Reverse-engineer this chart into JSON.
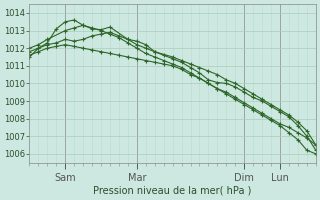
{
  "title": "",
  "xlabel": "Pression niveau de la mer( hPa )",
  "bg_color": "#cce8e0",
  "grid_color_major": "#aaccbb",
  "grid_color_minor": "#bbddcc",
  "line_color": "#2d6628",
  "marker_color": "#2d6628",
  "ylim": [
    1005.5,
    1014.5
  ],
  "yticks": [
    1006,
    1007,
    1008,
    1009,
    1010,
    1011,
    1012,
    1013,
    1014
  ],
  "xlim": [
    0,
    96
  ],
  "xtick_positions": [
    12,
    36,
    72,
    84
  ],
  "xtick_labels": [
    "Sam",
    "Mar",
    "Dim",
    "Lun"
  ],
  "minor_xtick_step": 3,
  "series": [
    {
      "x": [
        0,
        3,
        6,
        9,
        12,
        15,
        18,
        21,
        24,
        27,
        30,
        33,
        36,
        39,
        42,
        45,
        48,
        51,
        54,
        57,
        60,
        63,
        66,
        69,
        72,
        75,
        78,
        81,
        84,
        87,
        90,
        93,
        96
      ],
      "y": [
        1011.6,
        1011.8,
        1012.0,
        1012.1,
        1012.2,
        1012.1,
        1012.0,
        1011.9,
        1011.8,
        1011.7,
        1011.6,
        1011.5,
        1011.4,
        1011.3,
        1011.2,
        1011.1,
        1011.0,
        1010.8,
        1010.5,
        1010.3,
        1010.0,
        1009.7,
        1009.5,
        1009.2,
        1008.9,
        1008.6,
        1008.3,
        1008.0,
        1007.7,
        1007.5,
        1007.2,
        1006.9,
        1006.5
      ]
    },
    {
      "x": [
        0,
        3,
        6,
        12,
        15,
        18,
        21,
        24,
        27,
        30,
        33,
        36,
        39,
        42,
        45,
        48,
        51,
        54,
        57,
        60,
        63,
        66,
        69,
        72,
        75,
        78,
        81,
        84,
        87,
        90,
        93,
        96
      ],
      "y": [
        1012.0,
        1012.2,
        1012.5,
        1013.0,
        1013.15,
        1013.3,
        1013.15,
        1013.0,
        1012.8,
        1012.6,
        1012.3,
        1012.0,
        1011.7,
        1011.5,
        1011.3,
        1011.1,
        1010.9,
        1010.6,
        1010.3,
        1010.0,
        1009.7,
        1009.4,
        1009.1,
        1008.8,
        1008.5,
        1008.2,
        1007.9,
        1007.6,
        1007.2,
        1006.8,
        1006.2,
        1006.0
      ]
    },
    {
      "x": [
        0,
        3,
        6,
        9,
        12,
        15,
        18,
        21,
        24,
        27,
        33,
        36,
        39,
        42,
        45,
        48,
        51,
        54,
        57,
        60,
        63,
        66,
        69,
        72,
        75,
        78,
        81,
        84,
        87,
        90,
        93,
        96
      ],
      "y": [
        1011.5,
        1012.0,
        1012.3,
        1013.1,
        1013.5,
        1013.6,
        1013.3,
        1013.1,
        1013.05,
        1013.2,
        1012.5,
        1012.4,
        1012.2,
        1011.8,
        1011.6,
        1011.4,
        1011.2,
        1010.9,
        1010.6,
        1010.2,
        1010.05,
        1010.0,
        1009.8,
        1009.5,
        1009.2,
        1009.0,
        1008.7,
        1008.4,
        1008.1,
        1007.6,
        1007.0,
        1006.2
      ]
    },
    {
      "x": [
        0,
        3,
        6,
        9,
        12,
        15,
        18,
        21,
        24,
        27,
        30,
        33,
        36,
        39,
        42,
        48,
        51,
        54,
        57,
        60,
        63,
        66,
        69,
        72,
        75,
        78,
        81,
        84,
        87,
        90,
        93,
        96
      ],
      "y": [
        1011.8,
        1012.0,
        1012.2,
        1012.3,
        1012.5,
        1012.4,
        1012.5,
        1012.7,
        1012.8,
        1012.9,
        1012.7,
        1012.5,
        1012.2,
        1012.0,
        1011.8,
        1011.5,
        1011.3,
        1011.1,
        1010.9,
        1010.7,
        1010.5,
        1010.2,
        1010.0,
        1009.7,
        1009.4,
        1009.1,
        1008.8,
        1008.5,
        1008.2,
        1007.8,
        1007.3,
        1006.5
      ]
    }
  ]
}
